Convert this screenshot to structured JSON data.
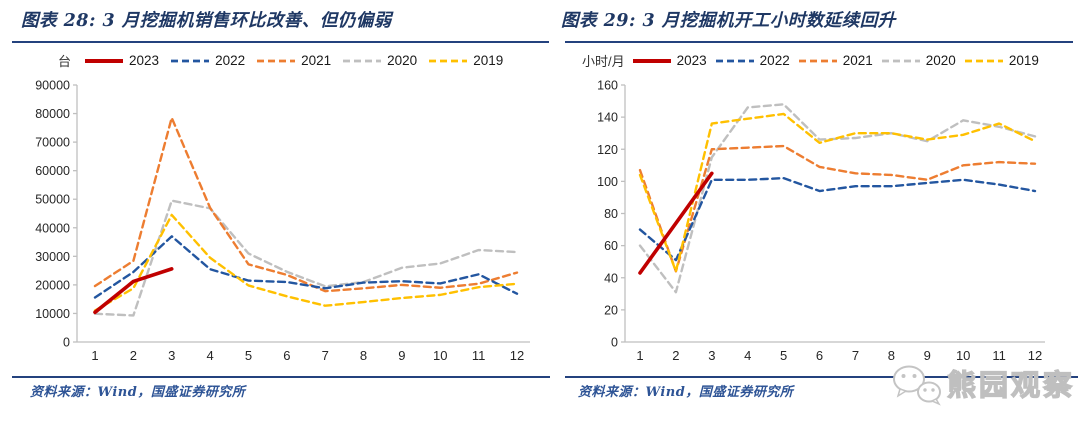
{
  "theme": {
    "title_color": "#1f3864",
    "rule_color": "#24427e",
    "footer_color": "#2e5496",
    "axis_color": "#bfbfbf",
    "tick_label_color": "#262626",
    "watermark_color": "#bfbfbf",
    "background": "#ffffff"
  },
  "source_note": "资料来源：Wind，国盛证券研究所",
  "watermark": {
    "icon": "wechat-icon",
    "text": "熊园观察"
  },
  "chart_data": [
    {
      "type": "line",
      "title": "图表 28: 3 月挖掘机销售环比改善、但仍偏弱",
      "unit": "台",
      "xlabel": "",
      "ylabel": "台",
      "x": [
        1,
        2,
        3,
        4,
        5,
        6,
        7,
        8,
        9,
        10,
        11,
        12
      ],
      "ylim": [
        0,
        90000
      ],
      "ytick_step": 10000,
      "grid": false,
      "legend_position": "top",
      "series": [
        {
          "name": "2023",
          "color": "#c00000",
          "dash": false,
          "values": [
            10400,
            21200,
            25600
          ]
        },
        {
          "name": "2022",
          "color": "#2356a0",
          "dash": true,
          "values": [
            15600,
            24500,
            37000,
            25500,
            21500,
            21000,
            18800,
            20800,
            21300,
            20500,
            23700,
            16900
          ]
        },
        {
          "name": "2021",
          "color": "#ed7d31",
          "dash": true,
          "values": [
            19600,
            28400,
            78500,
            47000,
            27200,
            23500,
            17800,
            18800,
            20000,
            19000,
            20400,
            24300
          ]
        },
        {
          "name": "2020",
          "color": "#bfbfbf",
          "dash": true,
          "values": [
            9900,
            9300,
            49500,
            46800,
            31000,
            24600,
            19500,
            21000,
            26000,
            27500,
            32200,
            31500
          ]
        },
        {
          "name": "2019",
          "color": "#ffc000",
          "dash": true,
          "values": [
            11000,
            18800,
            44500,
            29500,
            19800,
            16000,
            12700,
            14000,
            15400,
            16500,
            19200,
            20400
          ]
        }
      ]
    },
    {
      "type": "line",
      "title": "图表 29: 3 月挖掘机开工小时数延续回升",
      "unit": "小时/月",
      "xlabel": "",
      "ylabel": "小时/月",
      "x": [
        1,
        2,
        3,
        4,
        5,
        6,
        7,
        8,
        9,
        10,
        11,
        12
      ],
      "ylim": [
        0,
        160
      ],
      "ytick_step": 20,
      "grid": false,
      "legend_position": "top",
      "series": [
        {
          "name": "2023",
          "color": "#c00000",
          "dash": false,
          "values": [
            43,
            74,
            105
          ]
        },
        {
          "name": "2022",
          "color": "#2356a0",
          "dash": true,
          "values": [
            70,
            51,
            101,
            101,
            102,
            94,
            97,
            97,
            99,
            101,
            98,
            94
          ]
        },
        {
          "name": "2021",
          "color": "#ed7d31",
          "dash": true,
          "values": [
            107,
            44,
            120,
            121,
            122,
            109,
            105,
            104,
            101,
            110,
            112,
            111
          ]
        },
        {
          "name": "2020",
          "color": "#bfbfbf",
          "dash": true,
          "values": [
            60,
            31,
            115,
            146,
            148,
            126,
            127,
            130,
            125,
            138,
            134,
            128
          ]
        },
        {
          "name": "2019",
          "color": "#ffc000",
          "dash": true,
          "values": [
            104,
            44,
            136,
            139,
            142,
            124,
            130,
            130,
            126,
            129,
            136,
            125
          ]
        }
      ]
    }
  ]
}
